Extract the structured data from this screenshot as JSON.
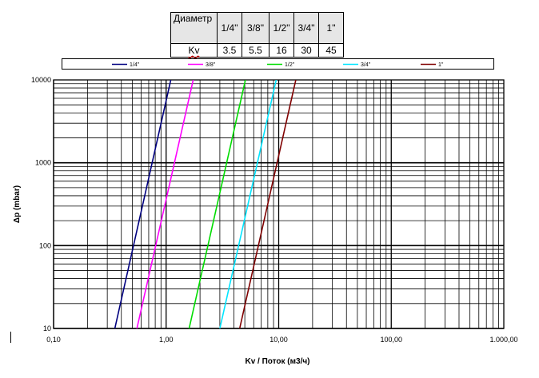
{
  "kv_table": {
    "header_label": "Диаметр",
    "kv_label": "Kv",
    "columns": [
      {
        "size": "1/4\"",
        "kv": "3.5"
      },
      {
        "size": "3/8\"",
        "kv": "5.5"
      },
      {
        "size": "1/2\"",
        "kv": "16"
      },
      {
        "size": "3/4\"",
        "kv": "30"
      },
      {
        "size": "1\"",
        "kv": "45"
      }
    ]
  },
  "chart_data": {
    "type": "line",
    "x_scale": "log",
    "y_scale": "log",
    "xlim": [
      0.1,
      1000
    ],
    "ylim": [
      10,
      10000
    ],
    "xlabel": "Kv / Поток (м3/ч)",
    "ylabel": "Δp  (mbar)",
    "x_tick_labels": [
      "0,10",
      "1,00",
      "10,00",
      "100,00",
      "1.000,00"
    ],
    "y_tick_labels": [
      "10",
      "100",
      "1000",
      "10000"
    ],
    "grid": true,
    "legend_position": "top",
    "series": [
      {
        "name": "1/4\"",
        "color": "#000080",
        "x": [
          0.35,
          1.1
        ],
        "y": [
          10,
          10000
        ]
      },
      {
        "name": "3/8\"",
        "color": "#ff00ff",
        "x": [
          0.55,
          1.74
        ],
        "y": [
          10,
          10000
        ]
      },
      {
        "name": "1/2\"",
        "color": "#00dd00",
        "x": [
          1.6,
          5.06
        ],
        "y": [
          10,
          10000
        ]
      },
      {
        "name": "3/4\"",
        "color": "#00e5ff",
        "x": [
          3.0,
          9.5
        ],
        "y": [
          10,
          10000
        ]
      },
      {
        "name": "1\"",
        "color": "#800000",
        "x": [
          4.5,
          14.2
        ],
        "y": [
          10,
          10000
        ]
      }
    ]
  }
}
